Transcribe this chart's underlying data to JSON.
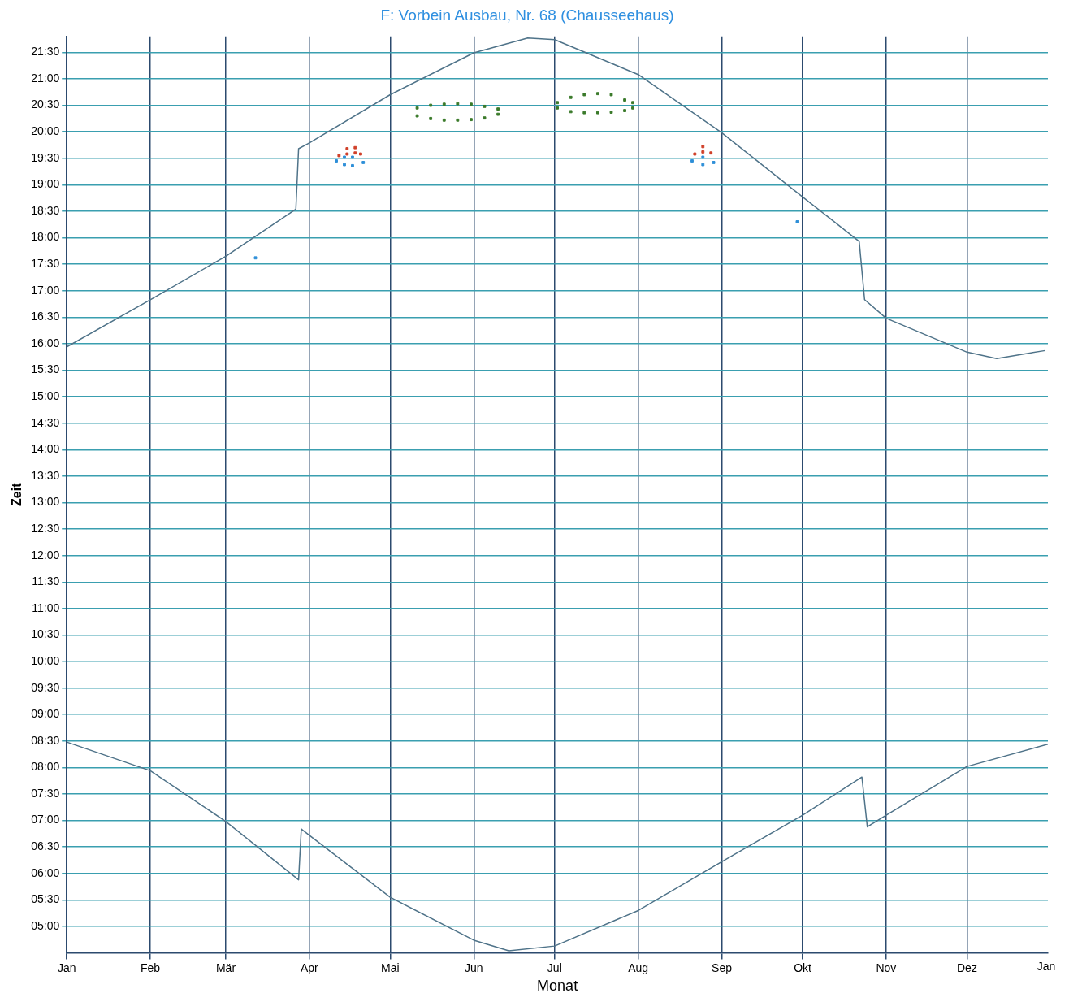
{
  "chart_data": {
    "type": "line",
    "title": "F: Vorbein Ausbau, Nr. 68 (Chausseehaus)",
    "xlabel": "Monat",
    "ylabel": "Zeit",
    "xlim": [
      "--01-01",
      "--12-31"
    ],
    "xticks": [
      {
        "value": "--01-01",
        "label": "Jan"
      },
      {
        "value": "--02-01",
        "label": "Feb"
      },
      {
        "value": "--03-01",
        "label": "Mär"
      },
      {
        "value": "--04-01",
        "label": "Apr"
      },
      {
        "value": "--05-01",
        "label": "Mai"
      },
      {
        "value": "--06-01",
        "label": "Jun"
      },
      {
        "value": "--07-01",
        "label": "Jul"
      },
      {
        "value": "--08-01",
        "label": "Aug"
      },
      {
        "value": "--09-01",
        "label": "Sep"
      },
      {
        "value": "--10-01",
        "label": "Okt"
      },
      {
        "value": "--11-01",
        "label": "Nov"
      },
      {
        "value": "--12-01",
        "label": "Dez"
      }
    ],
    "annotations": [
      "Jan"
    ],
    "ylim": [
      4.5,
      21.8
    ],
    "yticks": [
      {
        "value": 5,
        "label": "05:00"
      },
      {
        "value": 5.5,
        "label": "05:30"
      },
      {
        "value": 6,
        "label": "06:00"
      },
      {
        "value": 6.5,
        "label": "06:30"
      },
      {
        "value": 7,
        "label": "07:00"
      },
      {
        "value": 7.5,
        "label": "07:30"
      },
      {
        "value": 8,
        "label": "08:00"
      },
      {
        "value": 8.5,
        "label": "08:30"
      },
      {
        "value": 9,
        "label": "09:00"
      },
      {
        "value": 9.5,
        "label": "09:30"
      },
      {
        "value": 10,
        "label": "10:00"
      },
      {
        "value": 10.5,
        "label": "10:30"
      },
      {
        "value": 11,
        "label": "11:00"
      },
      {
        "value": 11.5,
        "label": "11:30"
      },
      {
        "value": 12,
        "label": "12:00"
      },
      {
        "value": 12.5,
        "label": "12:30"
      },
      {
        "value": 13,
        "label": "13:00"
      },
      {
        "value": 13.5,
        "label": "13:30"
      },
      {
        "value": 14,
        "label": "14:00"
      },
      {
        "value": 14.5,
        "label": "14:30"
      },
      {
        "value": 15,
        "label": "15:00"
      },
      {
        "value": 15.5,
        "label": "15:30"
      },
      {
        "value": 16,
        "label": "16:00"
      },
      {
        "value": 16.5,
        "label": "16:30"
      },
      {
        "value": 17,
        "label": "17:00"
      },
      {
        "value": 17.5,
        "label": "17:30"
      },
      {
        "value": 18,
        "label": "18:00"
      },
      {
        "value": 18.5,
        "label": "18:30"
      },
      {
        "value": 19,
        "label": "19:00"
      },
      {
        "value": 19.5,
        "label": "19:30"
      },
      {
        "value": 20,
        "label": "20:00"
      },
      {
        "value": 20.5,
        "label": "20:30"
      },
      {
        "value": 21,
        "label": "21:00"
      },
      {
        "value": 21.5,
        "label": "21:30"
      }
    ],
    "grid": true,
    "legend": false,
    "marker": "none",
    "line_style": "solid",
    "series": [
      {
        "color": "#4f7389",
        "x": [
          "--01-01",
          "--02-01",
          "--03-01",
          "--03-27",
          "--03-28",
          "--04-01",
          "--05-01",
          "--06-01",
          "--06-21",
          "--07-01",
          "--08-01",
          "--09-01",
          "--10-01",
          "--10-22",
          "--10-24",
          "--11-01",
          "--12-01",
          "--12-12",
          "--12-30"
        ],
        "values": [
          15.94,
          16.83,
          17.65,
          18.54,
          19.68,
          19.79,
          20.7,
          21.49,
          21.77,
          21.74,
          21.08,
          19.98,
          18.77,
          17.93,
          16.83,
          16.48,
          15.84,
          15.72,
          15.87
        ]
      },
      {
        "color": "#4f7389",
        "x": [
          "--01-01",
          "--02-01",
          "--03-01",
          "--03-28",
          "--03-29",
          "--04-01",
          "--05-01",
          "--06-01",
          "--06-14",
          "--07-01",
          "--08-01",
          "--09-01",
          "--10-01",
          "--10-23",
          "--10-25",
          "--11-01",
          "--12-01",
          "--12-31"
        ],
        "values": [
          8.48,
          7.94,
          6.98,
          5.88,
          6.84,
          6.72,
          5.55,
          4.74,
          4.54,
          4.63,
          5.3,
          6.22,
          7.1,
          7.82,
          6.88,
          7.1,
          8.02,
          8.44
        ]
      },
      {
        "type": "scatter",
        "marker": "square",
        "color": "#3a7a2a",
        "x": [
          "--05-11",
          "--05-11",
          "--05-16",
          "--05-16",
          "--05-21",
          "--05-21",
          "--05-26",
          "--05-26",
          "--05-31",
          "--05-31",
          "--06-05",
          "--06-05",
          "--06-10",
          "--06-10",
          "--07-02",
          "--07-02",
          "--07-07",
          "--07-07",
          "--07-12",
          "--07-12",
          "--07-17",
          "--07-17",
          "--07-22",
          "--07-22",
          "--07-27",
          "--07-27",
          "--07-30",
          "--07-30"
        ],
        "values": [
          20.3,
          20.45,
          20.25,
          20.5,
          20.22,
          20.52,
          20.22,
          20.53,
          20.23,
          20.52,
          20.26,
          20.48,
          20.33,
          20.43,
          20.45,
          20.55,
          20.38,
          20.65,
          20.36,
          20.7,
          20.36,
          20.72,
          20.37,
          20.7,
          20.4,
          20.6,
          20.45,
          20.55
        ]
      },
      {
        "type": "scatter",
        "marker": "square",
        "color": "#d0402a",
        "x": [
          "--04-12",
          "--04-15",
          "--04-15",
          "--04-18",
          "--04-18",
          "--04-20",
          "--08-22",
          "--08-25",
          "--08-25",
          "--08-28"
        ],
        "values": [
          19.55,
          19.58,
          19.68,
          19.6,
          19.7,
          19.58,
          19.58,
          19.62,
          19.72,
          19.6
        ]
      },
      {
        "type": "scatter",
        "marker": "square",
        "color": "#2e8fd8",
        "x": [
          "--03-12",
          "--04-11",
          "--04-14",
          "--04-14",
          "--04-17",
          "--04-17",
          "--04-21",
          "--08-21",
          "--08-25",
          "--08-25",
          "--08-29",
          "--09-29"
        ],
        "values": [
          17.62,
          19.45,
          19.38,
          19.52,
          19.36,
          19.52,
          19.42,
          19.45,
          19.38,
          19.52,
          19.42,
          18.3
        ]
      }
    ]
  }
}
